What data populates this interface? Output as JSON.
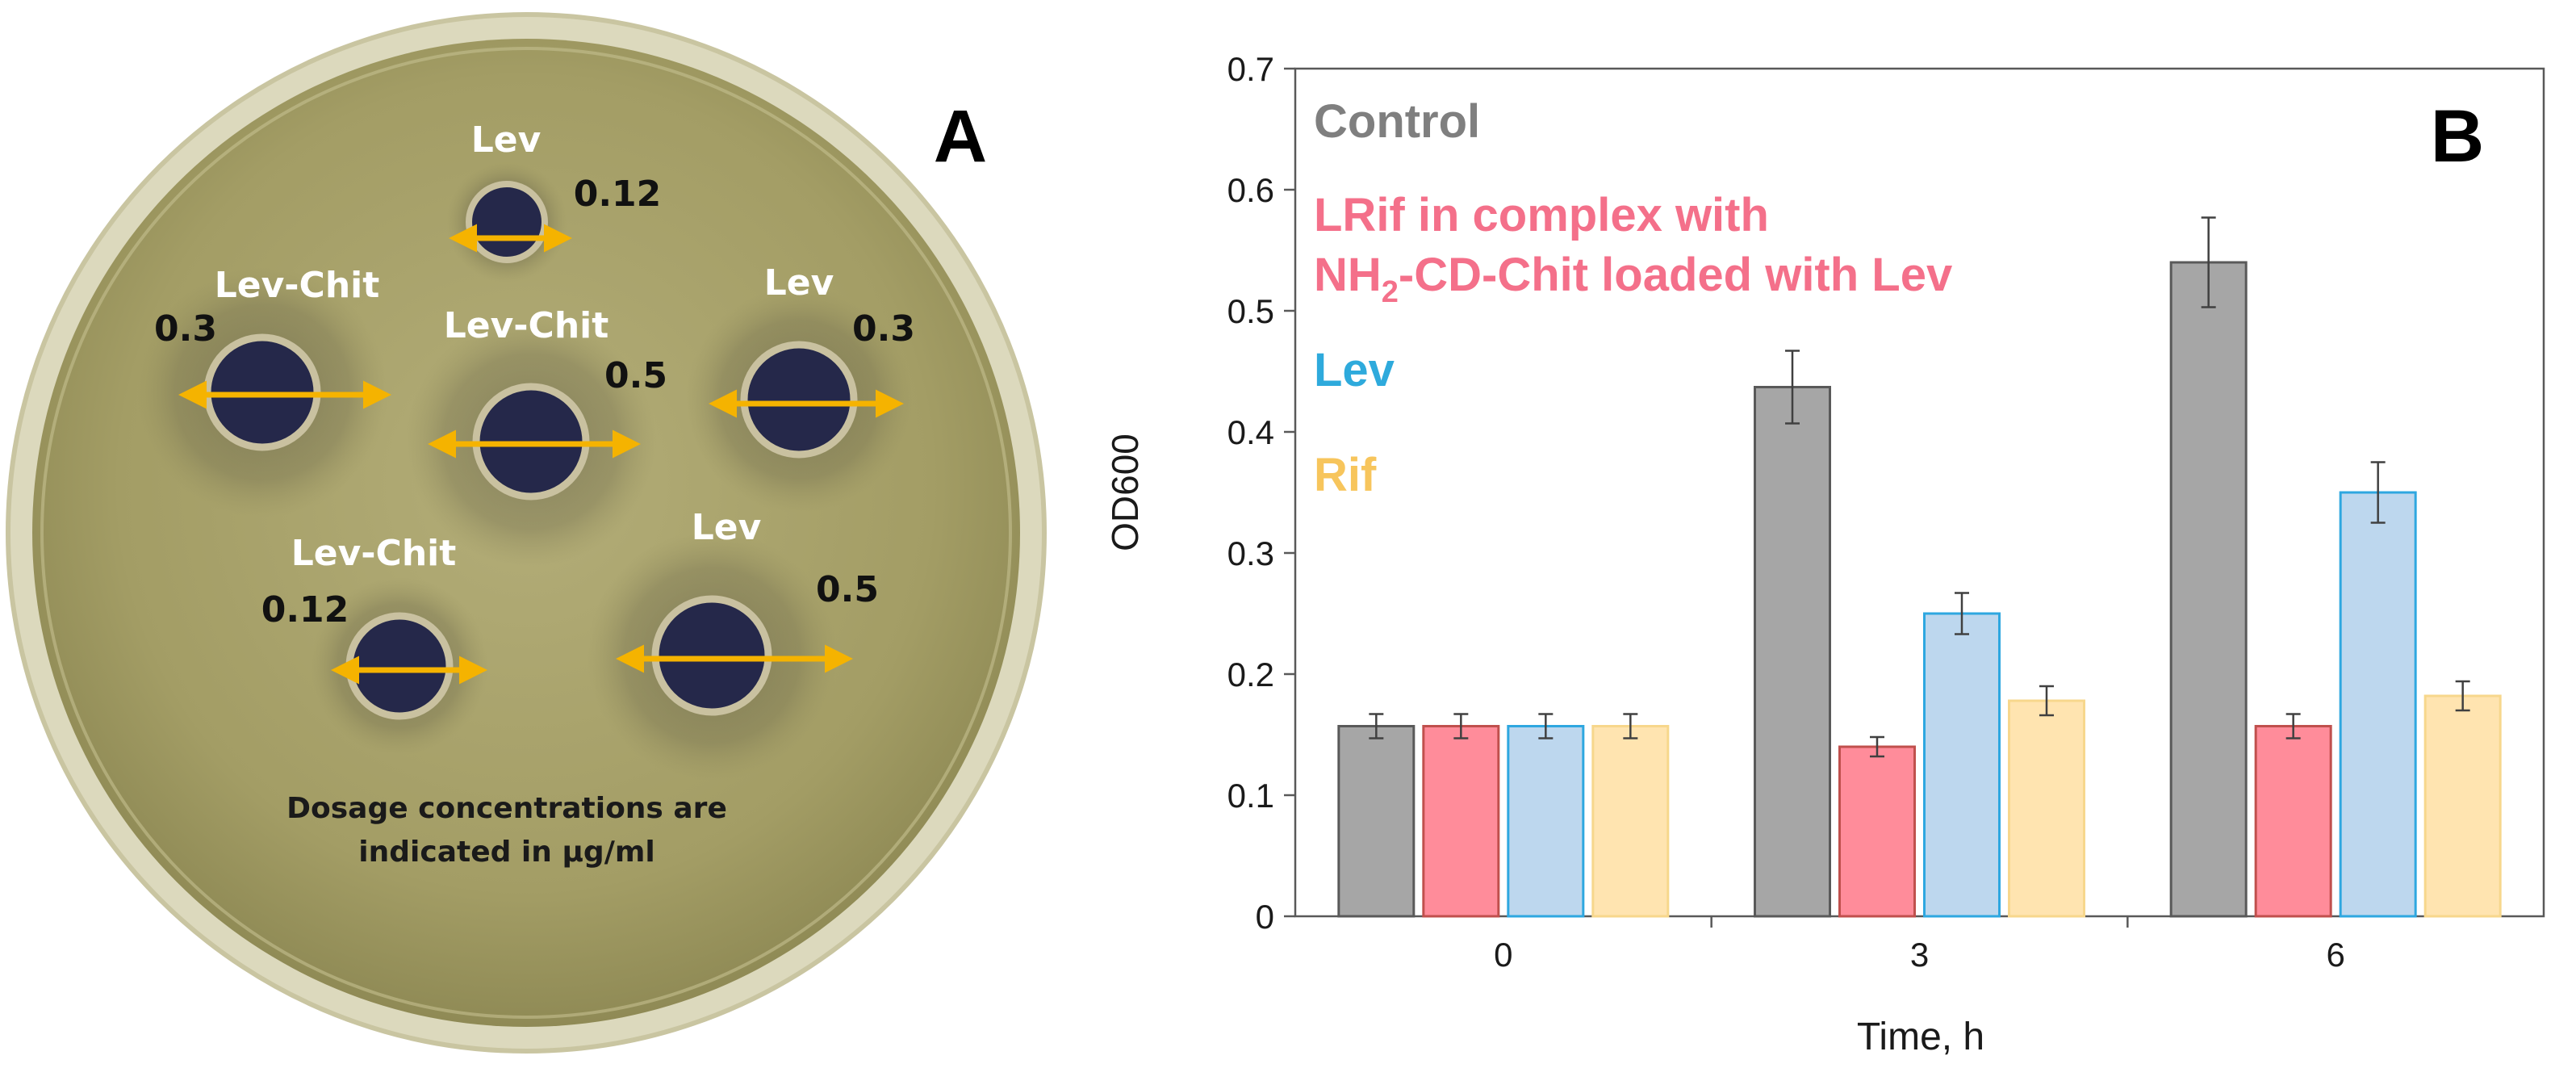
{
  "panel_a": {
    "letter": "A",
    "wells": [
      {
        "name": "Lev",
        "dose": "0.12"
      },
      {
        "name": "Lev-Chit",
        "dose": "0.3"
      },
      {
        "name": "Lev-Chit",
        "dose": "0.5"
      },
      {
        "name": "Lev",
        "dose": "0.3"
      },
      {
        "name": "Lev-Chit",
        "dose": "0.12"
      },
      {
        "name": "Lev",
        "dose": "0.5"
      }
    ],
    "note_line1": "Dosage concentrations are",
    "note_line2": "indicated in µg/ml",
    "colors": {
      "agar": "#a9a36c",
      "rim": "#d9d6b6",
      "well": "#25284a",
      "arrow": "#f5b300",
      "label": "#ffffff",
      "dose": "#111111"
    }
  },
  "chart_data": {
    "type": "bar",
    "panel_letter": "B",
    "xlabel": "Time, h",
    "ylabel": "OD600",
    "categories": [
      "0",
      "3",
      "6"
    ],
    "ylim": [
      0,
      0.7
    ],
    "yticks": [
      0,
      0.1,
      0.2,
      0.3,
      0.4,
      0.5,
      0.6,
      0.7
    ],
    "ytick_labels": [
      "0",
      "0.1",
      "0.2",
      "0.3",
      "0.4",
      "0.5",
      "0.6",
      "0.7"
    ],
    "grid": false,
    "legend_position": "top-left",
    "series": [
      {
        "name": "Control",
        "legend_lines": [
          "Control"
        ],
        "fill": "#a6a6a6",
        "stroke": "#595959",
        "text_color": "#7f7f7f",
        "values": [
          0.157,
          0.437,
          0.54
        ],
        "errors": [
          0.01,
          0.03,
          0.037
        ]
      },
      {
        "name": "LRif in complex with NH2-CD-Chit loaded with Lev",
        "legend_lines": [
          "LRif in complex with",
          "NH2-CD-Chit loaded with Lev"
        ],
        "fill": "#ff8c9a",
        "stroke": "#c0504d",
        "text_color": "#f4708a",
        "values": [
          0.157,
          0.14,
          0.157
        ],
        "errors": [
          0.01,
          0.008,
          0.01
        ]
      },
      {
        "name": "Lev",
        "legend_lines": [
          "Lev"
        ],
        "fill": "#bdd7ee",
        "stroke": "#2ea7e0",
        "text_color": "#2eaadc",
        "values": [
          0.157,
          0.25,
          0.35
        ],
        "errors": [
          0.01,
          0.017,
          0.025
        ]
      },
      {
        "name": "Rif",
        "legend_lines": [
          "Rif"
        ],
        "fill": "#ffe4b0",
        "stroke": "#f7d78c",
        "text_color": "#f7c55c",
        "values": [
          0.157,
          0.178,
          0.182
        ],
        "errors": [
          0.01,
          0.012,
          0.012
        ]
      }
    ]
  }
}
